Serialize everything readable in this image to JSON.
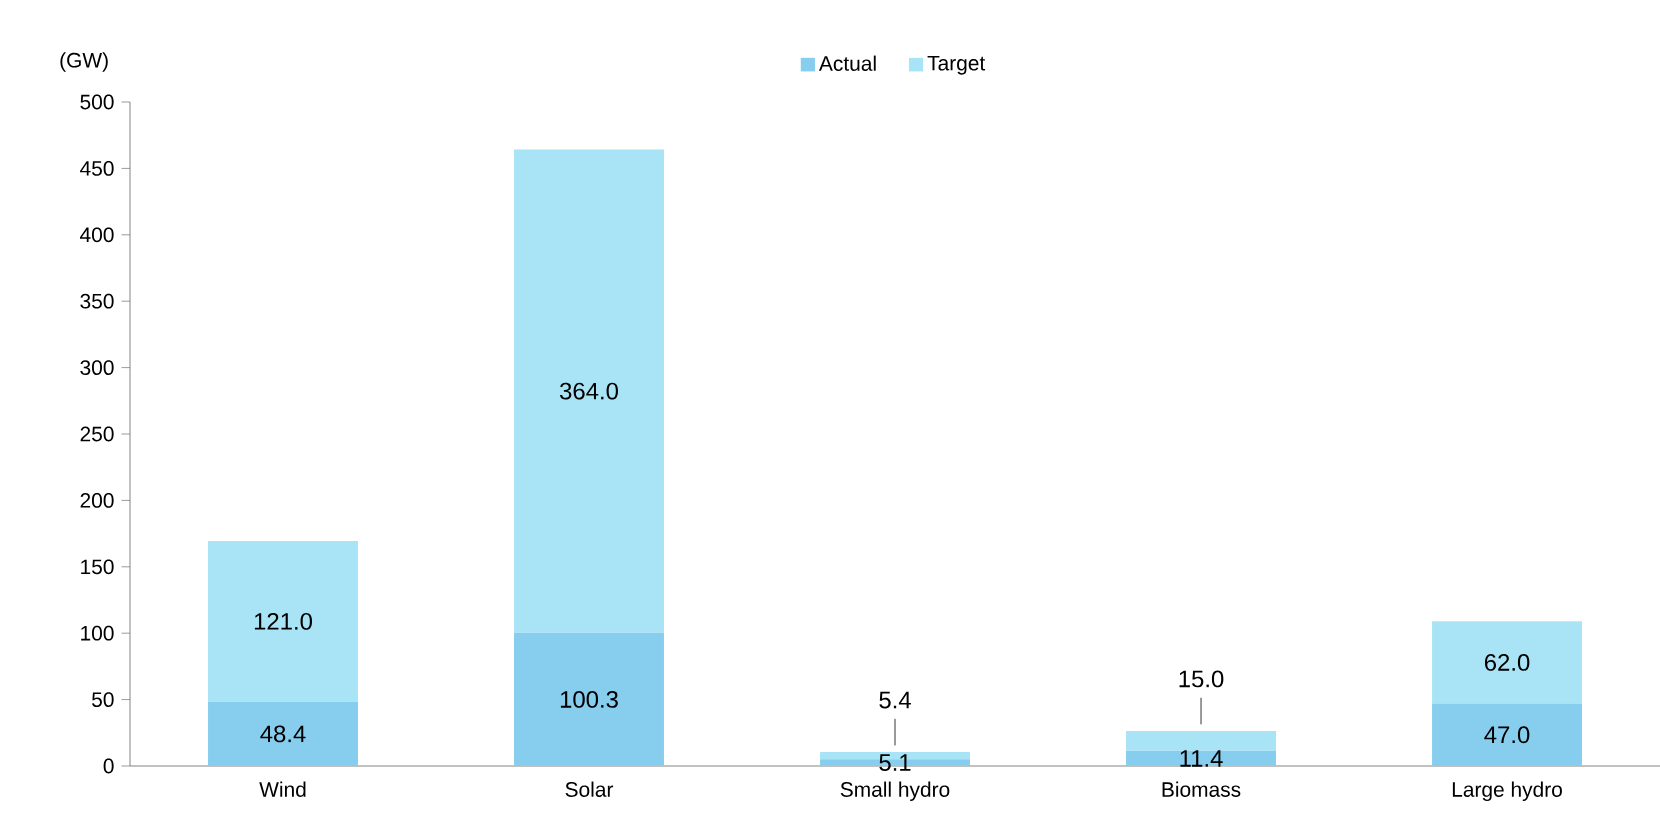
{
  "chart_data": {
    "type": "bar",
    "stacked": true,
    "ylabel": "(GW)",
    "categories": [
      "Wind",
      "Solar",
      "Small hydro",
      "Biomass",
      "Large hydro"
    ],
    "series": [
      {
        "name": "Actual",
        "color": "#87ceee",
        "values": [
          48.4,
          100.3,
          5.1,
          11.4,
          47.0
        ],
        "value_labels": [
          "48.4",
          "100.3",
          "5.1",
          "11.4",
          "47.0"
        ]
      },
      {
        "name": "Target",
        "color": "#a8e4f6",
        "values": [
          121.0,
          364.0,
          5.4,
          15.0,
          62.0
        ],
        "value_labels": [
          "121.0",
          "364.0",
          "5.4",
          "15.0",
          "62.0"
        ]
      }
    ],
    "ylim": [
      0,
      500
    ],
    "yticks": [
      0,
      50,
      100,
      150,
      200,
      250,
      300,
      350,
      400,
      450,
      500
    ],
    "legend": "top",
    "grid": false
  }
}
